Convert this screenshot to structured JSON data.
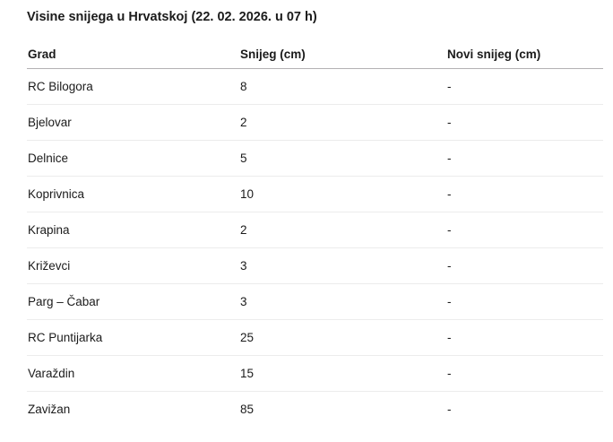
{
  "page": {
    "title": "Visine snijega u Hrvatskoj (22. 02. 2026. u 07 h)"
  },
  "table": {
    "columns": [
      "Grad",
      "Snijeg (cm)",
      "Novi snijeg (cm)"
    ],
    "rows": [
      {
        "grad": "RC Bilogora",
        "snijeg": "8",
        "novi": "-"
      },
      {
        "grad": "Bjelovar",
        "snijeg": "2",
        "novi": "-"
      },
      {
        "grad": "Delnice",
        "snijeg": "5",
        "novi": "-"
      },
      {
        "grad": "Koprivnica",
        "snijeg": "10",
        "novi": "-"
      },
      {
        "grad": "Krapina",
        "snijeg": "2",
        "novi": "-"
      },
      {
        "grad": "Križevci",
        "snijeg": "3",
        "novi": "-"
      },
      {
        "grad": "Parg – Čabar",
        "snijeg": "3",
        "novi": "-"
      },
      {
        "grad": "RC Puntijarka",
        "snijeg": "25",
        "novi": "-"
      },
      {
        "grad": "Varaždin",
        "snijeg": "15",
        "novi": "-"
      },
      {
        "grad": "Zavižan",
        "snijeg": "85",
        "novi": "-"
      }
    ]
  }
}
